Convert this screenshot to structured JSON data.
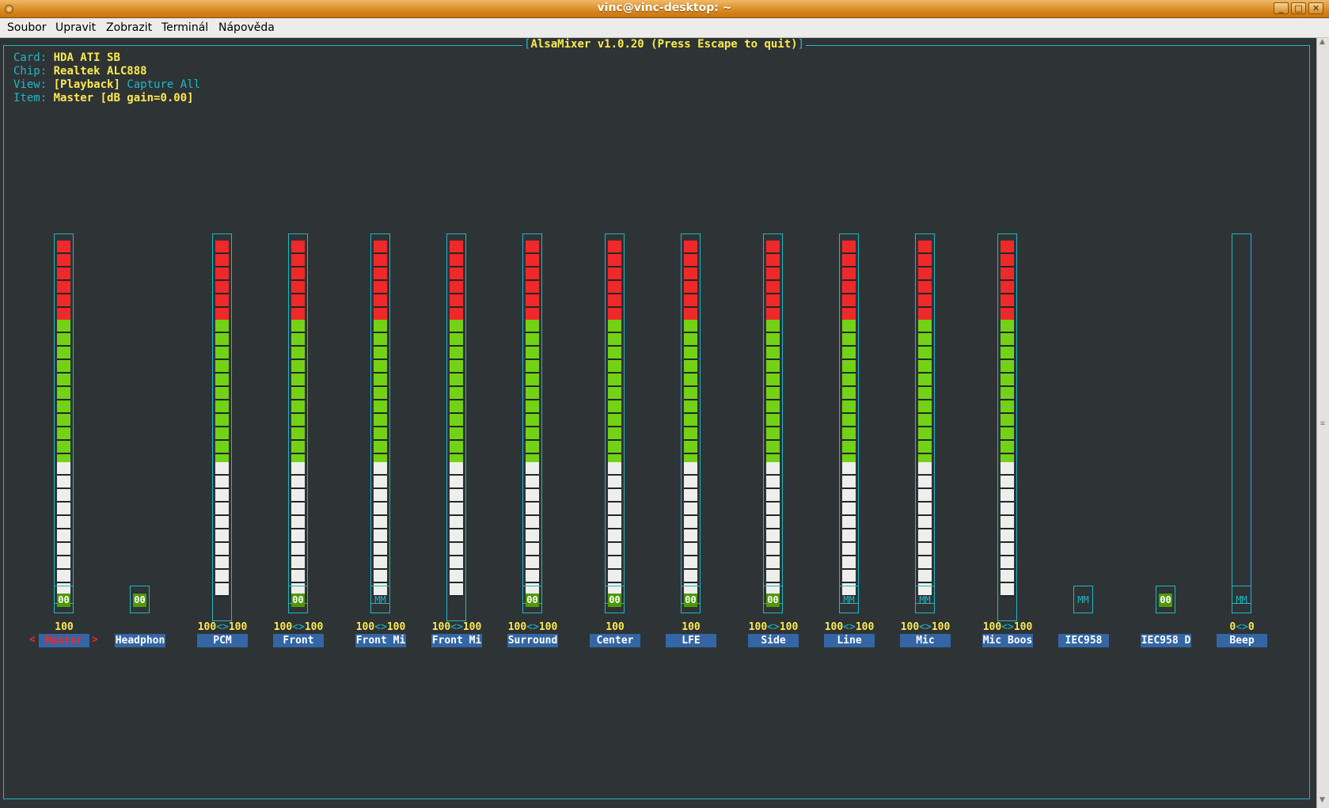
{
  "window": {
    "title": "vinc@vinc-desktop: ~",
    "minimize": "_",
    "maximize": "□",
    "close": "✕"
  },
  "menu": [
    "Soubor",
    "Upravit",
    "Zobrazit",
    "Terminál",
    "Nápověda"
  ],
  "mixer": {
    "title": "AlsaMixer v1.0.20 (Press Escape to quit)",
    "card_key": "Card:",
    "card": "HDA ATI SB",
    "chip_key": "Chip:",
    "chip": "Realtek ALC888",
    "view_key": "View:",
    "view_playback": "[Playback]",
    "view_capture": "Capture",
    "view_all": "All",
    "item_key": "Item:",
    "item": "Master [dB gain=0.00]"
  },
  "channels": [
    {
      "name": "Master",
      "value": "100",
      "level": 100,
      "switch": "00",
      "selected": true
    },
    {
      "name": "Headphon",
      "value": "",
      "level": null,
      "switch": "00"
    },
    {
      "name": "PCM",
      "value": "100<>100",
      "level": 100,
      "switch": null
    },
    {
      "name": "Front",
      "value": "100<>100",
      "level": 100,
      "switch": "00"
    },
    {
      "name": "Front Mi",
      "value": "100<>100",
      "level": 100,
      "switch": "MM"
    },
    {
      "name": "Front Mi",
      "value": "100<>100",
      "level": 100,
      "switch": null
    },
    {
      "name": "Surround",
      "value": "100<>100",
      "level": 100,
      "switch": "00"
    },
    {
      "name": "Center",
      "value": "100",
      "level": 100,
      "switch": "00"
    },
    {
      "name": "LFE",
      "value": "100",
      "level": 100,
      "switch": "00"
    },
    {
      "name": "Side",
      "value": "100<>100",
      "level": 100,
      "switch": "00"
    },
    {
      "name": "Line",
      "value": "100<>100",
      "level": 100,
      "switch": "MM"
    },
    {
      "name": "Mic",
      "value": "100<>100",
      "level": 100,
      "switch": "MM"
    },
    {
      "name": "Mic Boos",
      "value": "100<>100",
      "level": 100,
      "switch": null
    },
    {
      "name": "IEC958",
      "value": "",
      "level": null,
      "switch": "MM"
    },
    {
      "name": "IEC958 D",
      "value": "",
      "level": null,
      "switch": "00"
    },
    {
      "name": "Beep",
      "value": "0<>0",
      "level": 0,
      "switch": "MM"
    }
  ],
  "colors": {
    "accent": "#23b6c4",
    "red": "#ef2929",
    "green": "#73d216",
    "white": "#eeeeec",
    "highlight": "#fce94f",
    "label_bg": "#3465a4"
  }
}
